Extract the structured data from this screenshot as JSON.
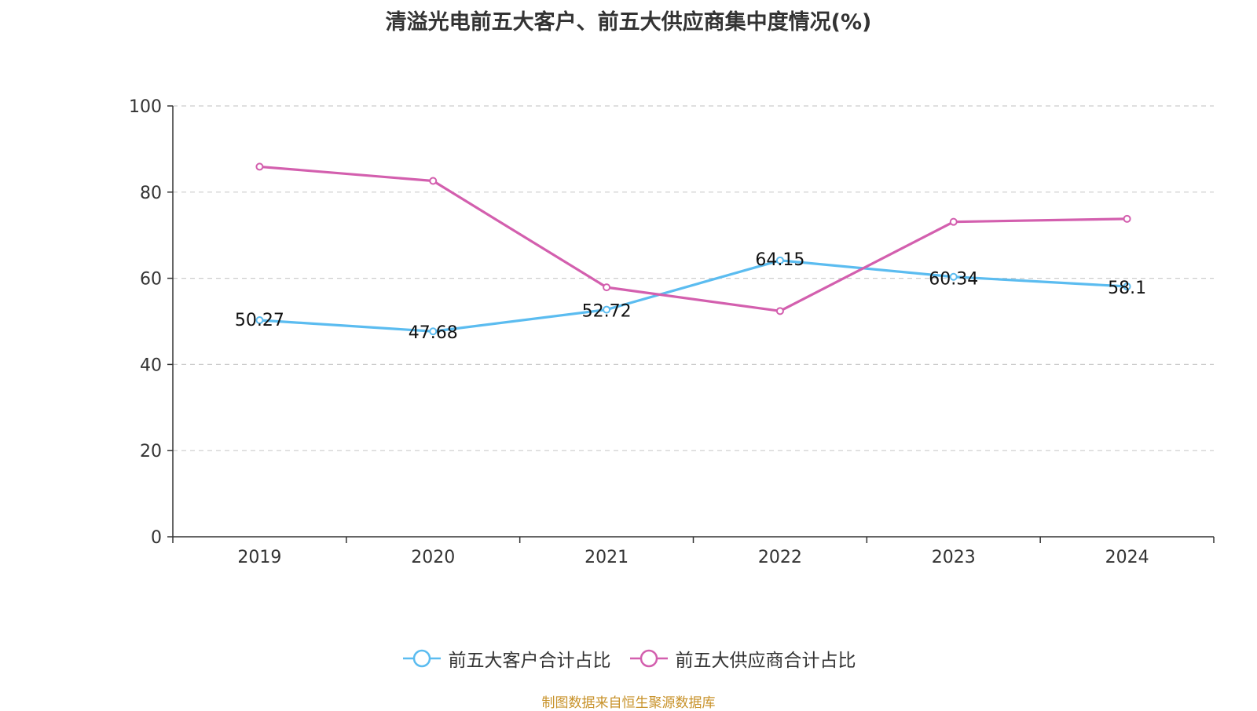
{
  "chart_data": {
    "type": "line",
    "title": "清溢光电前五大客户、前五大供应商集中度情况(%)",
    "categories": [
      "2019",
      "2020",
      "2021",
      "2022",
      "2023",
      "2024"
    ],
    "series": [
      {
        "name": "前五大客户合计占比",
        "color": "#5bbcf0",
        "values": [
          50.27,
          47.68,
          52.72,
          64.15,
          60.34,
          58.1
        ],
        "labels": [
          "50.27",
          "47.68",
          "52.72",
          "64.15",
          "60.34",
          "58.1"
        ]
      },
      {
        "name": "前五大供应商合计占比",
        "color": "#d35fae",
        "values": [
          85.9,
          82.6,
          57.9,
          52.4,
          73.1,
          73.8
        ]
      }
    ],
    "yticks": [
      "0",
      "20",
      "40",
      "60",
      "80",
      "100"
    ],
    "ylim": [
      0,
      100
    ],
    "grid": true,
    "legend_position": "bottom"
  },
  "source_note": "制图数据来自恒生聚源数据库",
  "source_color": "#c8922a"
}
